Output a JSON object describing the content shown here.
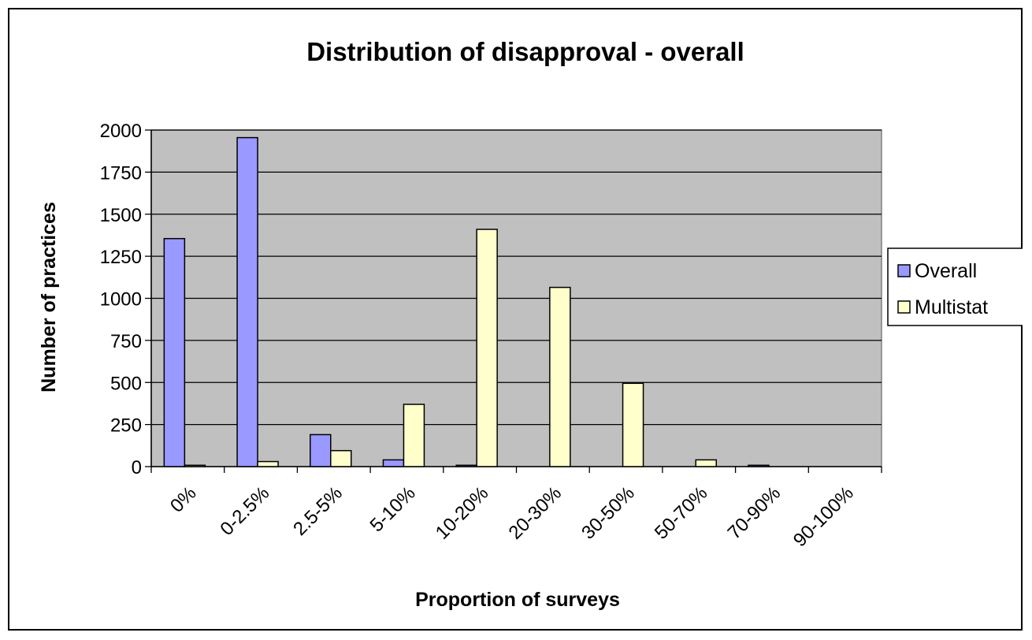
{
  "chart_data": {
    "type": "bar",
    "title": "Distribution of disapproval - overall",
    "xlabel": "Proportion of surveys",
    "ylabel": "Number of practices",
    "categories": [
      "0%",
      "0-2.5%",
      "2.5-5%",
      "5-10%",
      "10-20%",
      "20-30%",
      "30-50%",
      "50-70%",
      "70-90%",
      "90-100%"
    ],
    "series": [
      {
        "name": "Overall",
        "values": [
          1355,
          1955,
          190,
          40,
          8,
          0,
          0,
          0,
          8,
          0
        ],
        "color": "#9999ff"
      },
      {
        "name": "Multistat",
        "values": [
          8,
          30,
          95,
          370,
          1410,
          1065,
          495,
          40,
          0,
          0
        ],
        "color": "#ffffcc"
      }
    ],
    "ylim": [
      0,
      2000
    ],
    "yticks": [
      0,
      250,
      500,
      750,
      1000,
      1250,
      1500,
      1750,
      2000
    ],
    "grid": true,
    "legend": "right",
    "plot_background": "#c0c0c0"
  }
}
